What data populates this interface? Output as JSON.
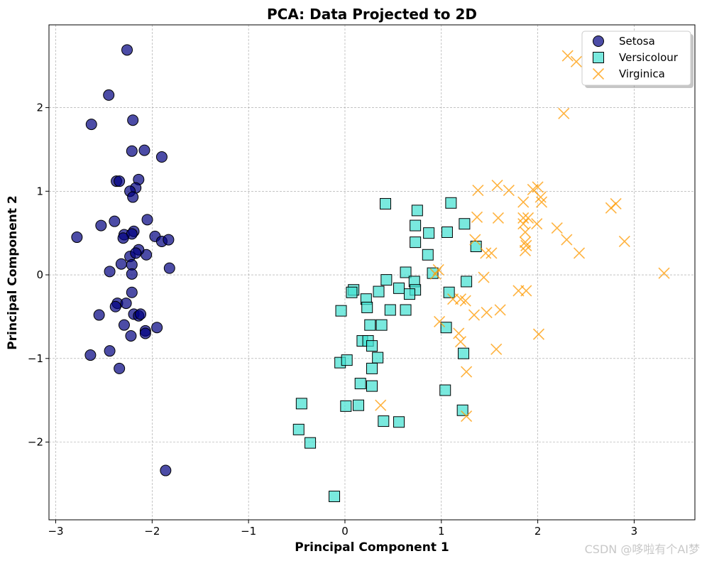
{
  "chart_data": {
    "type": "scatter",
    "title": "PCA: Data Projected to 2D",
    "xlabel": "Principal Component 1",
    "ylabel": "Principal Component 2",
    "xlim": [
      -3.07,
      3.63
    ],
    "ylim": [
      -2.93,
      2.99
    ],
    "xticks": [
      -3,
      -2,
      -1,
      0,
      1,
      2,
      3
    ],
    "yticks": [
      -2,
      -1,
      0,
      1,
      2
    ],
    "xtick_labels": [
      "−3",
      "−2",
      "−1",
      "0",
      "1",
      "2",
      "3"
    ],
    "ytick_labels": [
      "−2",
      "−1",
      "0",
      "1",
      "2"
    ],
    "grid": true,
    "legend_position": "top-right",
    "series": [
      {
        "name": "Setosa",
        "marker": "circle",
        "color": "#000080",
        "points": [
          [
            -2.26,
            2.69
          ],
          [
            -2.45,
            2.15
          ],
          [
            -2.63,
            1.8
          ],
          [
            -2.2,
            1.85
          ],
          [
            -2.21,
            1.48
          ],
          [
            -2.08,
            1.49
          ],
          [
            -1.9,
            1.41
          ],
          [
            -2.37,
            1.12
          ],
          [
            -2.34,
            1.12
          ],
          [
            -2.14,
            1.14
          ],
          [
            -2.17,
            1.04
          ],
          [
            -2.23,
            1.0
          ],
          [
            -2.2,
            0.93
          ],
          [
            -2.05,
            0.66
          ],
          [
            -2.39,
            0.64
          ],
          [
            -2.53,
            0.59
          ],
          [
            -2.78,
            0.45
          ],
          [
            -2.29,
            0.48
          ],
          [
            -2.19,
            0.52
          ],
          [
            -2.21,
            0.49
          ],
          [
            -2.3,
            0.44
          ],
          [
            -1.97,
            0.46
          ],
          [
            -1.9,
            0.4
          ],
          [
            -1.83,
            0.42
          ],
          [
            -2.06,
            0.24
          ],
          [
            -2.14,
            0.3
          ],
          [
            -2.23,
            0.22
          ],
          [
            -2.17,
            0.26
          ],
          [
            -2.32,
            0.13
          ],
          [
            -2.21,
            0.12
          ],
          [
            -2.44,
            0.04
          ],
          [
            -2.21,
            0.01
          ],
          [
            -1.82,
            0.08
          ],
          [
            -2.21,
            -0.21
          ],
          [
            -2.36,
            -0.34
          ],
          [
            -2.38,
            -0.38
          ],
          [
            -2.27,
            -0.34
          ],
          [
            -2.55,
            -0.48
          ],
          [
            -2.19,
            -0.47
          ],
          [
            -2.14,
            -0.49
          ],
          [
            -2.12,
            -0.47
          ],
          [
            -2.29,
            -0.6
          ],
          [
            -2.22,
            -0.73
          ],
          [
            -2.07,
            -0.67
          ],
          [
            -2.07,
            -0.7
          ],
          [
            -1.95,
            -0.63
          ],
          [
            -2.44,
            -0.91
          ],
          [
            -2.64,
            -0.96
          ],
          [
            -2.34,
            -1.12
          ],
          [
            -1.86,
            -2.34
          ]
        ]
      },
      {
        "name": "Versicolour",
        "marker": "square",
        "color": "#40e0d0",
        "points": [
          [
            0.42,
            0.85
          ],
          [
            0.75,
            0.77
          ],
          [
            1.1,
            0.86
          ],
          [
            0.73,
            0.59
          ],
          [
            0.87,
            0.5
          ],
          [
            1.06,
            0.51
          ],
          [
            1.24,
            0.61
          ],
          [
            0.73,
            0.39
          ],
          [
            1.36,
            0.34
          ],
          [
            0.86,
            0.24
          ],
          [
            0.63,
            0.03
          ],
          [
            0.91,
            0.02
          ],
          [
            0.43,
            -0.06
          ],
          [
            0.72,
            -0.08
          ],
          [
            1.26,
            -0.08
          ],
          [
            0.56,
            -0.16
          ],
          [
            0.73,
            -0.18
          ],
          [
            0.09,
            -0.18
          ],
          [
            0.07,
            -0.21
          ],
          [
            0.35,
            -0.2
          ],
          [
            0.67,
            -0.23
          ],
          [
            1.08,
            -0.21
          ],
          [
            0.22,
            -0.29
          ],
          [
            0.23,
            -0.39
          ],
          [
            0.47,
            -0.42
          ],
          [
            -0.04,
            -0.43
          ],
          [
            0.63,
            -0.42
          ],
          [
            0.38,
            -0.6
          ],
          [
            0.26,
            -0.6
          ],
          [
            1.05,
            -0.63
          ],
          [
            0.18,
            -0.79
          ],
          [
            0.24,
            -0.79
          ],
          [
            0.28,
            -0.85
          ],
          [
            0.34,
            -0.99
          ],
          [
            -0.05,
            -1.05
          ],
          [
            0.02,
            -1.02
          ],
          [
            1.23,
            -0.94
          ],
          [
            0.28,
            -1.12
          ],
          [
            0.16,
            -1.3
          ],
          [
            0.28,
            -1.33
          ],
          [
            1.04,
            -1.38
          ],
          [
            -0.45,
            -1.54
          ],
          [
            0.01,
            -1.57
          ],
          [
            0.14,
            -1.56
          ],
          [
            -0.48,
            -1.85
          ],
          [
            1.22,
            -1.62
          ],
          [
            0.4,
            -1.75
          ],
          [
            0.56,
            -1.76
          ],
          [
            -0.36,
            -2.01
          ],
          [
            -0.11,
            -2.65
          ]
        ]
      },
      {
        "name": "Virginica",
        "marker": "x",
        "color": "#ff9900",
        "points": [
          [
            2.31,
            2.62
          ],
          [
            2.4,
            2.55
          ],
          [
            2.27,
            1.93
          ],
          [
            1.38,
            1.01
          ],
          [
            1.58,
            1.07
          ],
          [
            1.7,
            1.01
          ],
          [
            1.95,
            1.02
          ],
          [
            2.0,
            1.05
          ],
          [
            1.85,
            0.87
          ],
          [
            2.03,
            0.93
          ],
          [
            2.04,
            0.87
          ],
          [
            2.76,
            0.8
          ],
          [
            2.81,
            0.85
          ],
          [
            1.37,
            0.69
          ],
          [
            1.59,
            0.68
          ],
          [
            1.85,
            0.68
          ],
          [
            1.9,
            0.68
          ],
          [
            1.85,
            0.61
          ],
          [
            1.99,
            0.61
          ],
          [
            2.2,
            0.56
          ],
          [
            1.87,
            0.51
          ],
          [
            1.35,
            0.42
          ],
          [
            1.87,
            0.39
          ],
          [
            1.88,
            0.35
          ],
          [
            1.87,
            0.29
          ],
          [
            2.3,
            0.42
          ],
          [
            2.9,
            0.4
          ],
          [
            1.46,
            0.26
          ],
          [
            1.52,
            0.26
          ],
          [
            2.43,
            0.26
          ],
          [
            0.97,
            0.06
          ],
          [
            0.94,
            0.01
          ],
          [
            3.31,
            0.02
          ],
          [
            1.44,
            -0.03
          ],
          [
            1.2,
            -0.29
          ],
          [
            1.12,
            -0.29
          ],
          [
            1.25,
            -0.31
          ],
          [
            1.8,
            -0.19
          ],
          [
            1.88,
            -0.19
          ],
          [
            1.34,
            -0.48
          ],
          [
            1.47,
            -0.45
          ],
          [
            1.61,
            -0.42
          ],
          [
            0.98,
            -0.56
          ],
          [
            1.18,
            -0.7
          ],
          [
            1.2,
            -0.8
          ],
          [
            1.57,
            -0.89
          ],
          [
            2.01,
            -0.71
          ],
          [
            1.26,
            -1.16
          ],
          [
            0.37,
            -1.56
          ],
          [
            1.26,
            -1.69
          ]
        ]
      }
    ]
  },
  "watermark": "CSDN @哆啦有个AI梦"
}
